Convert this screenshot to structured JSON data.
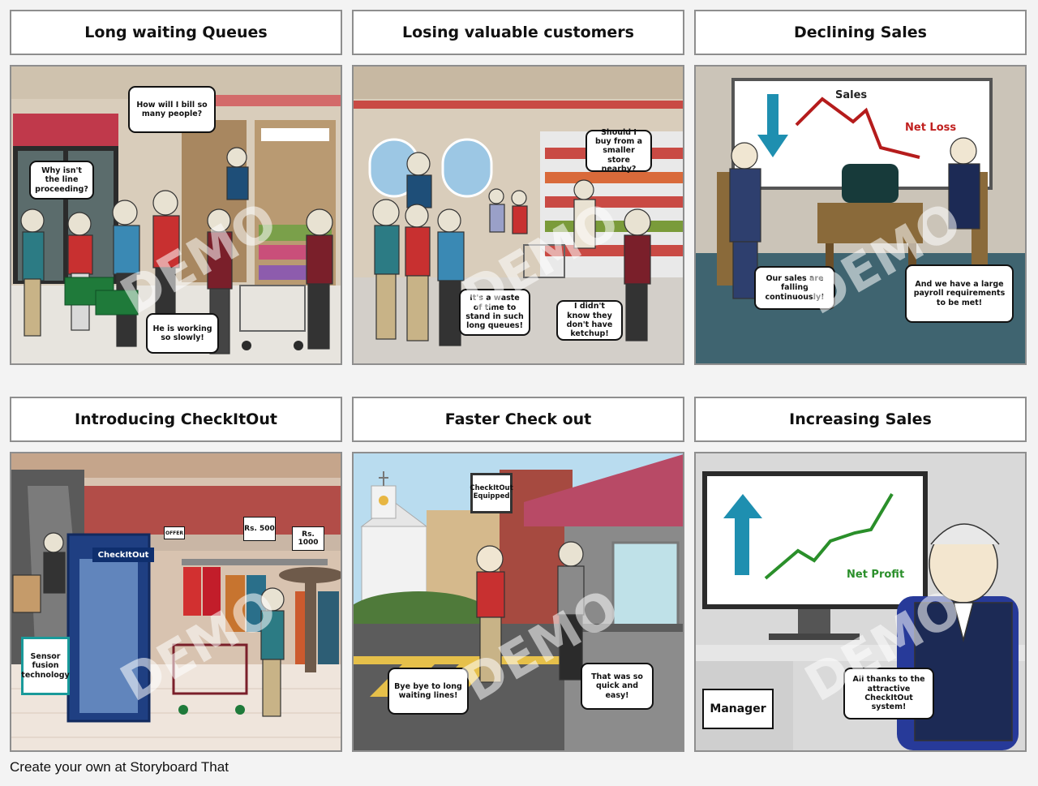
{
  "panels": [
    {
      "title": "Long waiting Queues",
      "bubbles": [
        "How will I bill so many people?",
        "Why isn't the line proceeding?",
        "He is working so slowly!"
      ]
    },
    {
      "title": "Losing valuable customers",
      "bubbles": [
        "Should I buy from a smaller store nearby?",
        "It's a waste of time to stand in such long queues!",
        "I didn't know they don't have ketchup!"
      ]
    },
    {
      "title": "Declining Sales",
      "chart_label": "Sales",
      "loss_label": "Net Loss",
      "bubbles": [
        "Our sales are falling continuously!",
        "And we have a large payroll requirements to be met!"
      ]
    },
    {
      "title": "Introducing CheckItOut",
      "booth_label": "CheckItOut",
      "offer_sign": "OFFER",
      "price_1": "Rs. 500",
      "price_2": "Rs. 1000",
      "sensor_sign": "Sensor fusion technology"
    },
    {
      "title": "Faster Check out",
      "store_sign": "CheckItOut Equipped",
      "bubbles": [
        "Bye bye to long waiting lines!",
        "That was so quick and easy!"
      ]
    },
    {
      "title": "Increasing Sales",
      "profit_label": "Net Profit",
      "manager_label": "Manager",
      "bubbles": [
        "All thanks to the attractive CheckItOut system!"
      ]
    }
  ],
  "footer": "Create your own at Storyboard That"
}
